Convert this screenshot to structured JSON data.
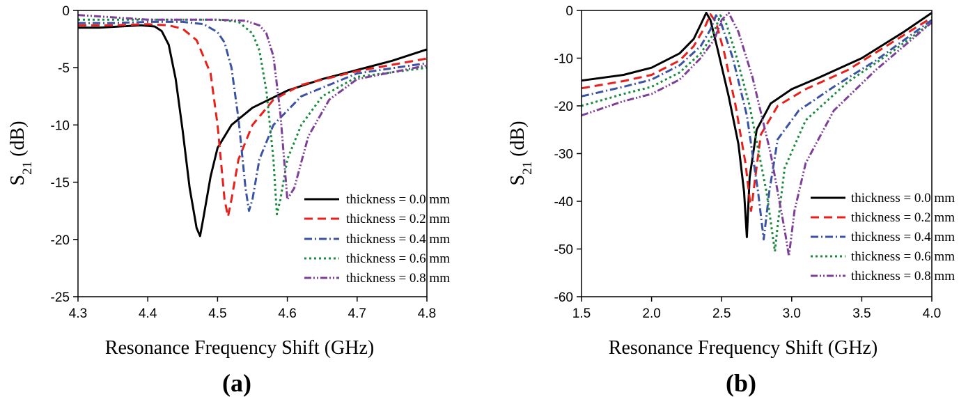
{
  "chart_data": [
    {
      "type": "line",
      "panel_label": "(a)",
      "xlabel": "Resonance Frequency Shift (GHz)",
      "ylabel_main": "S",
      "ylabel_sub": "21",
      "ylabel_unit": " (dB)",
      "xlim": [
        4.3,
        4.8
      ],
      "ylim": [
        -25,
        0
      ],
      "xticks": [
        "4.3",
        "4.4",
        "4.5",
        "4.6",
        "4.7",
        "4.8"
      ],
      "yticks": [
        "0",
        "-5",
        "-10",
        "-15",
        "-20",
        "-25"
      ],
      "grid": false,
      "legend_position": "bottom-right",
      "series": [
        {
          "name": "thickness = 0.0 mm",
          "color": "#000000",
          "dash": "solid",
          "x": [
            4.3,
            4.33,
            4.36,
            4.39,
            4.41,
            4.42,
            4.43,
            4.44,
            4.45,
            4.46,
            4.47,
            4.475,
            4.48,
            4.49,
            4.5,
            4.52,
            4.55,
            4.6,
            4.65,
            4.7,
            4.75,
            4.8
          ],
          "y": [
            -1.5,
            -1.5,
            -1.4,
            -1.3,
            -1.4,
            -1.8,
            -3.0,
            -6.0,
            -10.5,
            -15.5,
            -19.0,
            -19.7,
            -18.0,
            -14.5,
            -12.0,
            -10.0,
            -8.5,
            -7.0,
            -6.0,
            -5.2,
            -4.4,
            -3.4
          ]
        },
        {
          "name": "thickness = 0.2 mm",
          "color": "#e8201c",
          "dash": "dash",
          "x": [
            4.3,
            4.35,
            4.4,
            4.43,
            4.45,
            4.47,
            4.49,
            4.5,
            4.51,
            4.515,
            4.52,
            4.53,
            4.55,
            4.58,
            4.62,
            4.7,
            4.8
          ],
          "y": [
            -1.3,
            -1.3,
            -1.2,
            -1.3,
            -1.6,
            -2.6,
            -5.5,
            -10.0,
            -16.5,
            -18.0,
            -16.5,
            -13.0,
            -10.0,
            -7.8,
            -6.5,
            -5.3,
            -4.2
          ]
        },
        {
          "name": "thickness = 0.4 mm",
          "color": "#3a53a4",
          "dash": "dashdot",
          "x": [
            4.3,
            4.35,
            4.4,
            4.45,
            4.48,
            4.5,
            4.51,
            4.52,
            4.53,
            4.54,
            4.545,
            4.55,
            4.56,
            4.58,
            4.62,
            4.7,
            4.8
          ],
          "y": [
            -1.1,
            -1.1,
            -1.0,
            -1.0,
            -1.2,
            -1.9,
            -2.8,
            -5.0,
            -9.5,
            -15.5,
            -17.5,
            -16.5,
            -13.0,
            -10.0,
            -7.5,
            -5.5,
            -4.6
          ]
        },
        {
          "name": "thickness = 0.6 mm",
          "color": "#1a8a3f",
          "dash": "dot",
          "x": [
            4.3,
            4.35,
            4.4,
            4.45,
            4.5,
            4.53,
            4.55,
            4.56,
            4.57,
            4.58,
            4.585,
            4.59,
            4.6,
            4.62,
            4.65,
            4.7,
            4.8
          ],
          "y": [
            -0.8,
            -0.8,
            -0.8,
            -0.8,
            -0.8,
            -1.0,
            -2.0,
            -3.5,
            -7.0,
            -13.0,
            -17.8,
            -16.5,
            -13.0,
            -10.0,
            -7.5,
            -5.8,
            -5.0
          ]
        },
        {
          "name": "thickness = 0.8 mm",
          "color": "#7e3f98",
          "dash": "dashdotdot",
          "x": [
            4.3,
            4.35,
            4.4,
            4.45,
            4.5,
            4.54,
            4.56,
            4.57,
            4.58,
            4.59,
            4.6,
            4.61,
            4.63,
            4.66,
            4.7,
            4.8
          ],
          "y": [
            -0.4,
            -0.6,
            -0.8,
            -0.8,
            -0.8,
            -0.9,
            -1.3,
            -2.0,
            -4.0,
            -9.0,
            -16.5,
            -15.5,
            -11.0,
            -7.8,
            -6.0,
            -4.8
          ]
        }
      ]
    },
    {
      "type": "line",
      "panel_label": "(b)",
      "xlabel": "Resonance Frequency Shift (GHz)",
      "ylabel_main": "S",
      "ylabel_sub": "21",
      "ylabel_unit": " (dB)",
      "xlim": [
        1.5,
        4.0
      ],
      "ylim": [
        -60,
        0
      ],
      "xticks": [
        "1.5",
        "2.0",
        "2.5",
        "3.0",
        "3.5",
        "4.0"
      ],
      "yticks": [
        "0",
        "-10",
        "-20",
        "-30",
        "-40",
        "-50",
        "-60"
      ],
      "grid": false,
      "legend_position": "bottom-right",
      "series": [
        {
          "name": "thickness = 0.0 mm",
          "color": "#000000",
          "dash": "solid",
          "x": [
            1.5,
            1.8,
            2.0,
            2.2,
            2.3,
            2.35,
            2.39,
            2.42,
            2.47,
            2.55,
            2.62,
            2.66,
            2.68,
            2.7,
            2.75,
            2.85,
            3.0,
            3.2,
            3.5,
            3.8,
            4.0
          ],
          "y": [
            -14.7,
            -13.5,
            -12.0,
            -9.0,
            -6.0,
            -3.0,
            -0.5,
            -2.0,
            -8.0,
            -18.0,
            -28.0,
            -38.0,
            -47.5,
            -35.0,
            -25.0,
            -19.5,
            -16.5,
            -14.0,
            -10.0,
            -4.5,
            -0.5
          ]
        },
        {
          "name": "thickness = 0.2 mm",
          "color": "#e8201c",
          "dash": "dash",
          "x": [
            1.5,
            1.8,
            2.0,
            2.2,
            2.3,
            2.38,
            2.42,
            2.46,
            2.52,
            2.6,
            2.67,
            2.71,
            2.74,
            2.78,
            2.9,
            3.1,
            3.4,
            3.7,
            4.0
          ],
          "y": [
            -16.3,
            -14.8,
            -13.5,
            -10.5,
            -7.5,
            -3.5,
            -0.8,
            -2.5,
            -9.0,
            -20.0,
            -32.0,
            -42.0,
            -35.0,
            -26.0,
            -20.0,
            -16.5,
            -12.5,
            -7.0,
            -1.5
          ]
        },
        {
          "name": "thickness = 0.4 mm",
          "color": "#3a53a4",
          "dash": "dashdot",
          "x": [
            1.5,
            1.8,
            2.0,
            2.2,
            2.35,
            2.42,
            2.46,
            2.5,
            2.58,
            2.68,
            2.76,
            2.8,
            2.84,
            2.9,
            3.05,
            3.3,
            3.6,
            4.0
          ],
          "y": [
            -18.0,
            -16.0,
            -14.5,
            -11.5,
            -7.5,
            -4.0,
            -1.0,
            -3.0,
            -10.0,
            -22.0,
            -38.0,
            -48.0,
            -38.0,
            -27.0,
            -21.0,
            -16.0,
            -10.5,
            -2.0
          ]
        },
        {
          "name": "thickness = 0.6 mm",
          "color": "#1a8a3f",
          "dash": "dot",
          "x": [
            1.5,
            1.8,
            2.0,
            2.2,
            2.35,
            2.44,
            2.49,
            2.53,
            2.6,
            2.7,
            2.82,
            2.88,
            2.9,
            2.95,
            3.1,
            3.4,
            3.7,
            4.0
          ],
          "y": [
            -20.0,
            -17.5,
            -16.0,
            -13.0,
            -9.0,
            -5.0,
            -1.0,
            -2.5,
            -9.0,
            -20.0,
            -38.0,
            -50.5,
            -45.0,
            -33.0,
            -23.0,
            -15.0,
            -9.0,
            -2.5
          ]
        },
        {
          "name": "thickness = 0.8 mm",
          "color": "#7e3f98",
          "dash": "dashdotdot",
          "x": [
            1.5,
            1.8,
            2.0,
            2.2,
            2.35,
            2.45,
            2.5,
            2.55,
            2.62,
            2.72,
            2.85,
            2.95,
            2.98,
            3.02,
            3.1,
            3.3,
            3.6,
            4.0
          ],
          "y": [
            -22.0,
            -19.0,
            -17.5,
            -14.5,
            -10.0,
            -6.0,
            -2.0,
            -0.5,
            -4.5,
            -14.0,
            -30.0,
            -46.0,
            -51.5,
            -42.0,
            -32.0,
            -21.0,
            -12.5,
            -2.5
          ]
        }
      ]
    }
  ]
}
